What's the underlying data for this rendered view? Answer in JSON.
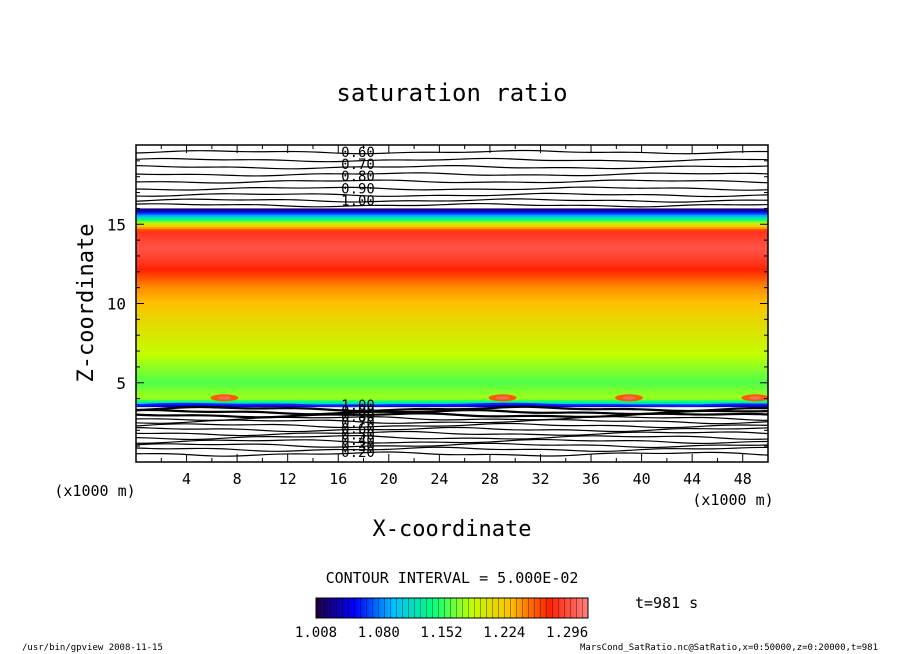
{
  "figure": {
    "title": "saturation ratio",
    "contour_interval": "CONTOUR INTERVAL = 5.000E-02",
    "time_label": "t=981 s",
    "footer_left": "/usr/bin/gpview   2008-11-15",
    "footer_right": "MarsCond_SatRatio.nc@SatRatio,x=0:50000,z=0:20000,t=981"
  },
  "chart_data": {
    "type": "heatmap",
    "title": "saturation ratio",
    "xlabel": "X-coordinate",
    "ylabel": "Z-coordinate",
    "x_unit": "(x1000 m)",
    "y_unit": "(x1000 m)",
    "xlim": [
      0,
      50
    ],
    "ylim": [
      0,
      20
    ],
    "x_ticks": [
      4,
      8,
      12,
      16,
      20,
      24,
      28,
      32,
      36,
      40,
      44,
      48
    ],
    "y_ticks": [
      5,
      10,
      15
    ],
    "colorbar": {
      "tick_labels": [
        "1.008",
        "1.080",
        "1.152",
        "1.224",
        "1.296"
      ],
      "range": [
        1.008,
        1.32
      ],
      "colors": [
        "#200040",
        "#0000ff",
        "#00c0ff",
        "#00ff80",
        "#c0ff00",
        "#ffc000",
        "#ff2000",
        "#ff8080"
      ]
    },
    "contour_labels_upper": [
      "0.60",
      "0.70",
      "0.80",
      "0.90",
      "1.00"
    ],
    "contour_labels_lower": [
      "1.00",
      "0.90",
      "0.80",
      "0.70",
      "0.60",
      "0.50",
      "0.40",
      "0.30",
      "0.20"
    ],
    "profile": [
      {
        "z": 3.5,
        "v": 1.008
      },
      {
        "z": 3.7,
        "v": 1.12
      },
      {
        "z": 4.0,
        "v": 1.18
      },
      {
        "z": 5.0,
        "v": 1.16
      },
      {
        "z": 7.0,
        "v": 1.19
      },
      {
        "z": 9.0,
        "v": 1.215
      },
      {
        "z": 11.0,
        "v": 1.245
      },
      {
        "z": 12.5,
        "v": 1.285
      },
      {
        "z": 13.5,
        "v": 1.3
      },
      {
        "z": 14.5,
        "v": 1.285
      },
      {
        "z": 15.0,
        "v": 1.2
      },
      {
        "z": 15.5,
        "v": 1.1
      },
      {
        "z": 16.0,
        "v": 1.008
      }
    ]
  }
}
